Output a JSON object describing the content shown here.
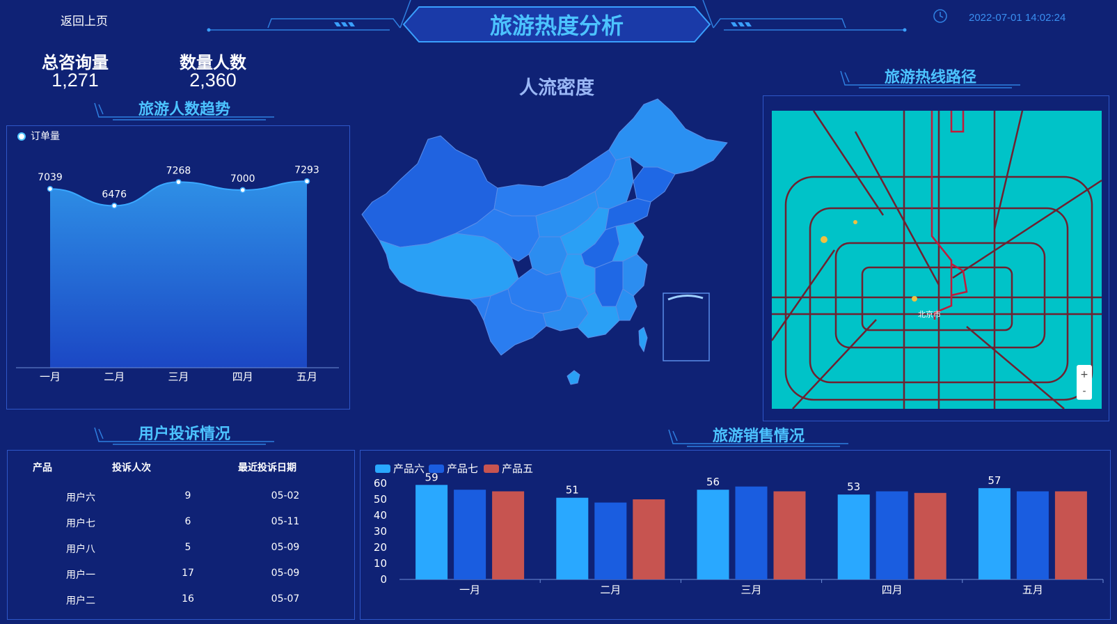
{
  "header": {
    "back_label": "返回上页",
    "title": "旅游热度分析",
    "datetime": "2022-07-01 14:02:24",
    "clock_icon": "clock-icon"
  },
  "kpis": [
    {
      "label": "总咨询量",
      "value": "1,271"
    },
    {
      "label": "数量人数",
      "value": "2,360"
    }
  ],
  "sections": {
    "trend_title": "旅游人数趋势",
    "map_title": "人流密度",
    "route_title": "旅游热线路径",
    "complaint_title": "用户投诉情况",
    "sales_title": "旅游销售情况"
  },
  "map_widget": {
    "city_label": "北京市",
    "zoom_in": "+",
    "zoom_out": "-"
  },
  "complaints": {
    "headers": [
      "产品",
      "投诉人次",
      "最近投诉日期"
    ],
    "rows": [
      {
        "name": "用户六",
        "count": "9",
        "date": "05-02"
      },
      {
        "name": "用户七",
        "count": "6",
        "date": "05-11"
      },
      {
        "name": "用户八",
        "count": "5",
        "date": "05-09"
      },
      {
        "name": "用户一",
        "count": "17",
        "date": "05-09"
      },
      {
        "name": "用户二",
        "count": "16",
        "date": "05-07"
      }
    ]
  },
  "colors": {
    "background": "#0f2275",
    "accent": "#4cc3ff",
    "area_top": "#2e8fe6",
    "area_bottom": "#1b47c4",
    "bar_light": "#29a8ff",
    "bar_dark": "#1a5de0",
    "bar_red": "#c75450",
    "map_water": "#00c3c8",
    "map_roads": "#7a1020"
  },
  "chart_data": [
    {
      "type": "area",
      "legend": "订单量",
      "categories": [
        "一月",
        "二月",
        "三月",
        "四月",
        "五月"
      ],
      "series": [
        {
          "name": "订单量",
          "values": [
            7039,
            6476,
            7268,
            7000,
            7293
          ]
        }
      ],
      "ylim": [
        0,
        8000
      ],
      "grid": false
    },
    {
      "type": "bar",
      "categories": [
        "一月",
        "二月",
        "三月",
        "四月",
        "五月"
      ],
      "series": [
        {
          "name": "产品六",
          "values": [
            59,
            51,
            56,
            53,
            57
          ]
        },
        {
          "name": "产品七",
          "values": [
            56,
            48,
            58,
            55,
            55
          ]
        },
        {
          "name": "产品五",
          "values": [
            55,
            50,
            55,
            54,
            55
          ]
        }
      ],
      "yticks": [
        "0",
        "10",
        "20",
        "30",
        "40",
        "50",
        "60"
      ],
      "ylim": [
        0,
        60
      ],
      "legend_position": "top-left",
      "grid": false
    }
  ]
}
